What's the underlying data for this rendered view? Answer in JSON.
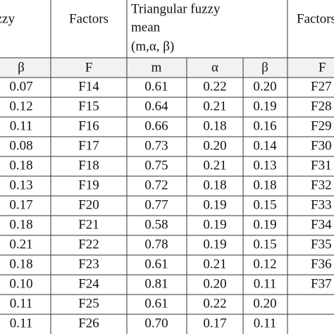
{
  "header": {
    "left": "fuzzy",
    "factors": "Factors",
    "group": [
      "Triangular fuzzy",
      "mean",
      "(m,α, β)"
    ],
    "right": "Factors"
  },
  "subheader": [
    "β",
    "F",
    "m",
    "α",
    "β",
    "F"
  ],
  "rows": [
    [
      "0.07",
      "F14",
      "0.61",
      "0.22",
      "0.20",
      "F27"
    ],
    [
      "0.12",
      "F15",
      "0.64",
      "0.21",
      "0.19",
      "F28"
    ],
    [
      "0.11",
      "F16",
      "0.66",
      "0.18",
      "0.16",
      "F29"
    ],
    [
      "0.08",
      "F17",
      "0.73",
      "0.20",
      "0.14",
      "F30"
    ],
    [
      "0.18",
      "F18",
      "0.75",
      "0.21",
      "0.13",
      "F31"
    ],
    [
      "0.13",
      "F19",
      "0.72",
      "0.18",
      "0.18",
      "F32"
    ],
    [
      "0.17",
      "F20",
      "0.77",
      "0.19",
      "0.15",
      "F33"
    ],
    [
      "0.18",
      "F21",
      "0.58",
      "0.19",
      "0.19",
      "F34"
    ],
    [
      "0.21",
      "F22",
      "0.78",
      "0.19",
      "0.15",
      "F35"
    ],
    [
      "0.18",
      "F23",
      "0.61",
      "0.21",
      "0.12",
      "F36"
    ],
    [
      "0.10",
      "F24",
      "0.81",
      "0.20",
      "0.11",
      "F37"
    ],
    [
      "0.11",
      "F25",
      "0.61",
      "0.22",
      "0.20"
    ],
    [
      "0.11",
      "F26",
      "0.70",
      "0.17",
      "0.11"
    ]
  ]
}
